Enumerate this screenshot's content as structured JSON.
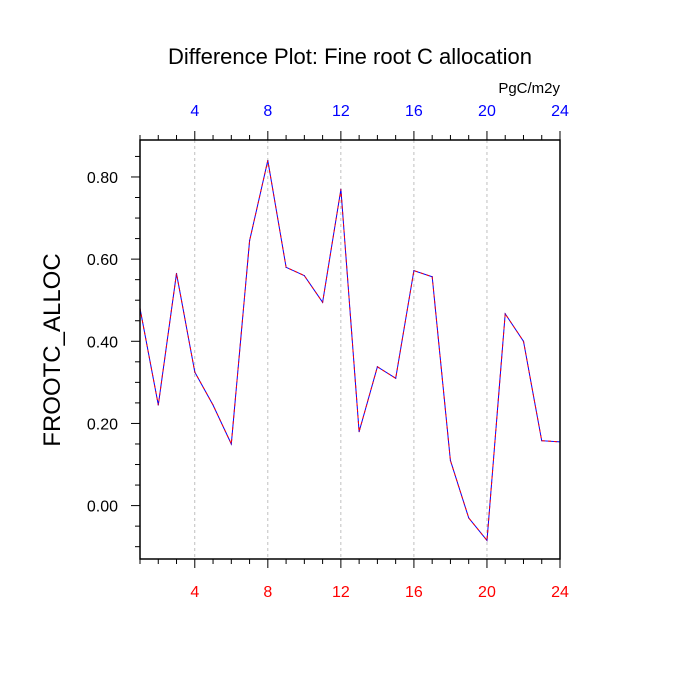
{
  "chart_data": {
    "type": "line",
    "title": "Difference Plot: Fine root C allocation",
    "units": "PgC/m2y",
    "ylabel": "FROOTC_ALLOC",
    "xlabel": "",
    "xlim": [
      1,
      24
    ],
    "ylim": [
      -0.13,
      0.89
    ],
    "x_ticks": [
      4,
      8,
      12,
      16,
      20,
      24
    ],
    "x_tick_labels": [
      "4",
      "8",
      "12",
      "16",
      "20",
      "24"
    ],
    "y_ticks": [
      0.0,
      0.2,
      0.4,
      0.6,
      0.8
    ],
    "y_tick_labels": [
      "0.00",
      "0.20",
      "0.40",
      "0.60",
      "0.80"
    ],
    "grid": "vertical dashed at major x ticks",
    "colors": {
      "top_ticks": "#0000ff",
      "bottom_ticks": "#ff0000",
      "series_a": "#0000ff",
      "series_b": "#ff0000"
    },
    "series": [
      {
        "x": [
          1,
          2,
          3,
          4,
          5,
          6,
          7,
          8,
          9,
          10,
          11,
          12,
          13,
          14,
          15,
          16,
          17,
          18,
          19,
          20,
          21,
          22,
          23,
          24
        ],
        "values": [
          0.48,
          0.245,
          0.565,
          0.325,
          0.245,
          0.15,
          0.645,
          0.84,
          0.58,
          0.56,
          0.495,
          0.77,
          0.18,
          0.338,
          0.31,
          0.572,
          0.557,
          0.11,
          -0.03,
          -0.085,
          0.467,
          0.4,
          0.158,
          0.155
        ]
      }
    ]
  }
}
